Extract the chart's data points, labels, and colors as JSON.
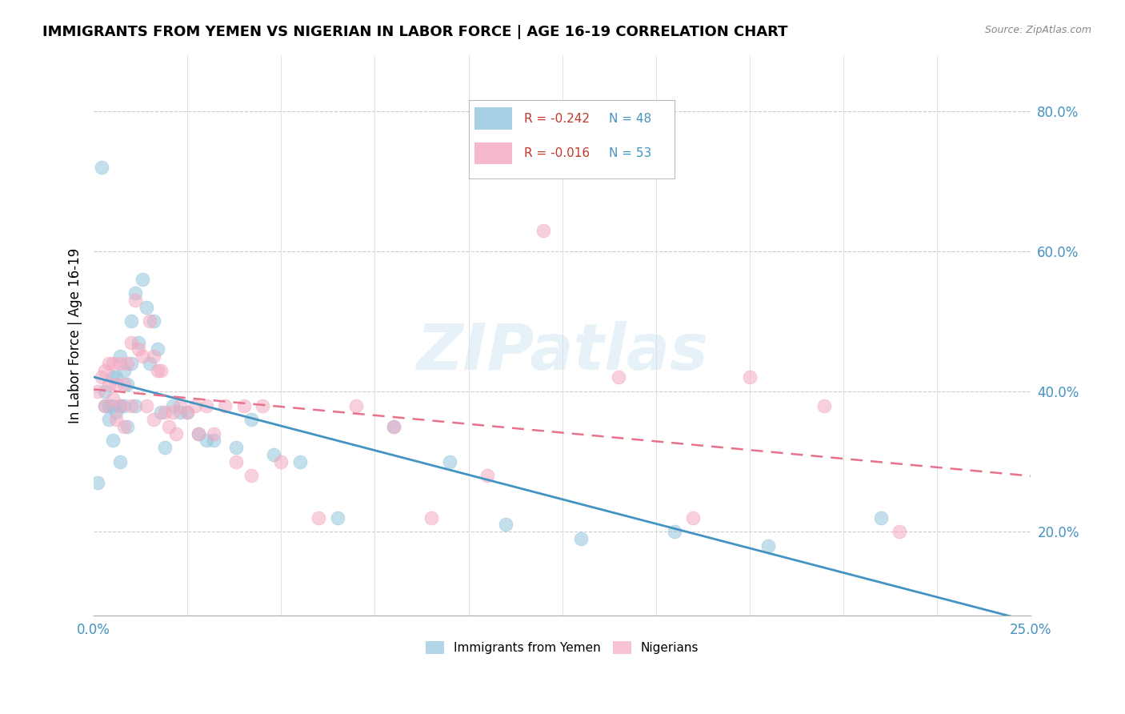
{
  "title": "IMMIGRANTS FROM YEMEN VS NIGERIAN IN LABOR FORCE | AGE 16-19 CORRELATION CHART",
  "source": "Source: ZipAtlas.com",
  "ylabel": "In Labor Force | Age 16-19",
  "yticks": [
    0.2,
    0.4,
    0.6,
    0.8
  ],
  "ytick_labels": [
    "20.0%",
    "40.0%",
    "60.0%",
    "80.0%"
  ],
  "xlim": [
    0.0,
    0.25
  ],
  "ylim": [
    0.08,
    0.88
  ],
  "legend_r_blue": "-0.242",
  "legend_n_blue": "48",
  "legend_r_pink": "-0.016",
  "legend_n_pink": "53",
  "color_blue": "#92c5de",
  "color_pink": "#f4a8c0",
  "line_color_blue": "#4393c3",
  "line_color_pink": "#e8728a",
  "watermark": "ZIPatlas",
  "yemen_x": [
    0.001,
    0.002,
    0.003,
    0.003,
    0.004,
    0.004,
    0.005,
    0.005,
    0.005,
    0.006,
    0.006,
    0.007,
    0.007,
    0.007,
    0.008,
    0.008,
    0.009,
    0.009,
    0.01,
    0.01,
    0.011,
    0.011,
    0.012,
    0.013,
    0.014,
    0.015,
    0.016,
    0.017,
    0.018,
    0.019,
    0.021,
    0.023,
    0.025,
    0.028,
    0.03,
    0.032,
    0.038,
    0.042,
    0.048,
    0.055,
    0.065,
    0.08,
    0.095,
    0.11,
    0.13,
    0.155,
    0.18,
    0.21
  ],
  "yemen_y": [
    0.27,
    0.72,
    0.38,
    0.4,
    0.36,
    0.38,
    0.33,
    0.38,
    0.42,
    0.37,
    0.42,
    0.3,
    0.38,
    0.45,
    0.38,
    0.43,
    0.41,
    0.35,
    0.5,
    0.44,
    0.54,
    0.38,
    0.47,
    0.56,
    0.52,
    0.44,
    0.5,
    0.46,
    0.37,
    0.32,
    0.38,
    0.37,
    0.37,
    0.34,
    0.33,
    0.33,
    0.32,
    0.36,
    0.31,
    0.3,
    0.22,
    0.35,
    0.3,
    0.21,
    0.19,
    0.2,
    0.18,
    0.22
  ],
  "nigeria_x": [
    0.001,
    0.002,
    0.003,
    0.003,
    0.004,
    0.004,
    0.005,
    0.005,
    0.006,
    0.006,
    0.007,
    0.007,
    0.008,
    0.008,
    0.009,
    0.01,
    0.01,
    0.011,
    0.012,
    0.013,
    0.014,
    0.015,
    0.016,
    0.016,
    0.017,
    0.018,
    0.019,
    0.02,
    0.021,
    0.022,
    0.023,
    0.025,
    0.027,
    0.028,
    0.03,
    0.032,
    0.035,
    0.038,
    0.04,
    0.042,
    0.045,
    0.05,
    0.06,
    0.07,
    0.08,
    0.09,
    0.105,
    0.12,
    0.14,
    0.16,
    0.175,
    0.195,
    0.215
  ],
  "nigeria_y": [
    0.4,
    0.42,
    0.38,
    0.43,
    0.41,
    0.44,
    0.39,
    0.44,
    0.36,
    0.41,
    0.44,
    0.38,
    0.41,
    0.35,
    0.44,
    0.47,
    0.38,
    0.53,
    0.46,
    0.45,
    0.38,
    0.5,
    0.36,
    0.45,
    0.43,
    0.43,
    0.37,
    0.35,
    0.37,
    0.34,
    0.38,
    0.37,
    0.38,
    0.34,
    0.38,
    0.34,
    0.38,
    0.3,
    0.38,
    0.28,
    0.38,
    0.3,
    0.22,
    0.38,
    0.35,
    0.22,
    0.28,
    0.63,
    0.42,
    0.22,
    0.42,
    0.38,
    0.2
  ]
}
